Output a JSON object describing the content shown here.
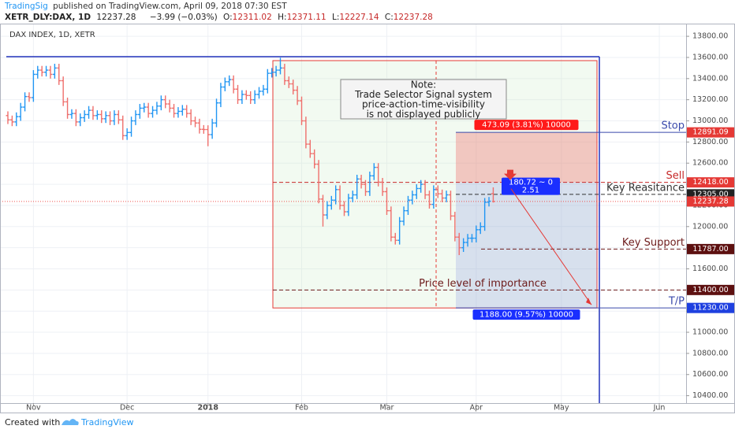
{
  "header": {
    "publisher": "TradingSig",
    "published": "published on TradingView.com, April 09, 2018 07:30 EST",
    "symbol": "XETR_DLY:DAX, 1D",
    "change": "−3.99 (−0.03%)",
    "o": "O:",
    "h": "H:",
    "l": "L:",
    "c": "C:"
  },
  "chart_data": {
    "type": "ohlc",
    "title": "DAX INDEX, 1D, XETR",
    "up_color": "#2196f3",
    "down_color": "#ef6f6c",
    "open": [
      13050,
      13010,
      12990,
      13040,
      13130,
      13230,
      13220,
      13440,
      13480,
      13460,
      13480,
      13440,
      13500,
      13380,
      13180,
      13060,
      13070,
      12990,
      13030,
      13060,
      13100,
      13050,
      13060,
      13020,
      13050,
      13000,
      13060,
      13010,
      12860,
      12890,
      13000,
      13060,
      13120,
      13130,
      13070,
      13100,
      13140,
      13200,
      13160,
      13120,
      13070,
      13090,
      13110,
      13070,
      13000,
      12980,
      12920,
      12918,
      12870,
      12980,
      13170,
      13320,
      13370,
      13390,
      13300,
      13200,
      13250,
      13240,
      13200,
      13250,
      13280,
      13300,
      13450,
      13460,
      13480,
      13500,
      13380,
      13350,
      13290,
      13190,
      13000,
      12780,
      12690,
      12590,
      12260,
      12110,
      12200,
      12250,
      12350,
      12200,
      12140,
      12270,
      12300,
      12450,
      12400,
      12330,
      12480,
      12560,
      12420,
      12330,
      12150,
      11900,
      11870,
      12050,
      12150,
      12250,
      12300,
      12360,
      12400,
      12300,
      12210,
      12350,
      12310,
      12270,
      12300,
      12100,
      11900,
      11800,
      11850,
      11890,
      11890,
      11970,
      12000,
      12230,
      12311.02
    ],
    "high": [
      13090,
      13050,
      13080,
      13170,
      13270,
      13270,
      13480,
      13520,
      13520,
      13520,
      13520,
      13540,
      13540,
      13420,
      13220,
      13110,
      13110,
      13070,
      13100,
      13140,
      13140,
      13100,
      13100,
      13090,
      13090,
      13100,
      13100,
      13050,
      12930,
      13040,
      13100,
      13160,
      13170,
      13170,
      13140,
      13180,
      13240,
      13240,
      13200,
      13160,
      13130,
      13150,
      13150,
      13110,
      13040,
      13020,
      12960,
      12958,
      13020,
      13210,
      13360,
      13410,
      13430,
      13430,
      13340,
      13290,
      13290,
      13280,
      13290,
      13320,
      13340,
      13490,
      13500,
      13520,
      13597,
      13540,
      13420,
      13390,
      13330,
      13230,
      13040,
      12820,
      12730,
      12630,
      12300,
      12240,
      12290,
      12390,
      12390,
      12240,
      12310,
      12340,
      12490,
      12490,
      12440,
      12520,
      12600,
      12600,
      12460,
      12370,
      12190,
      11940,
      12090,
      12190,
      12290,
      12340,
      12400,
      12440,
      12440,
      12340,
      12390,
      12390,
      12350,
      12340,
      12340,
      12140,
      11940,
      11890,
      11930,
      11930,
      12010,
      12040,
      12270,
      12280,
      12371.11
    ],
    "low": [
      12970,
      12950,
      12950,
      13000,
      13090,
      13180,
      13180,
      13400,
      13420,
      13420,
      13400,
      13400,
      13340,
      13140,
      13020,
      13020,
      12950,
      12950,
      12990,
      13020,
      13010,
      13010,
      12980,
      12980,
      12960,
      12960,
      12970,
      12820,
      12820,
      12850,
      12960,
      13020,
      13080,
      13030,
      13030,
      13060,
      13100,
      13120,
      13080,
      13030,
      13030,
      13050,
      13030,
      12960,
      12940,
      12880,
      12878,
      12760,
      12830,
      12940,
      13130,
      13280,
      13330,
      13260,
      13160,
      13160,
      13200,
      13160,
      13160,
      13210,
      13240,
      13260,
      13410,
      13420,
      13440,
      13340,
      13310,
      13250,
      13150,
      12960,
      12740,
      12650,
      12550,
      12220,
      12000,
      12070,
      12160,
      12210,
      12160,
      12100,
      12100,
      12230,
      12260,
      12360,
      12290,
      12290,
      12440,
      12380,
      12290,
      12110,
      11860,
      11830,
      11830,
      12010,
      12110,
      12210,
      12260,
      12320,
      12260,
      12170,
      12170,
      12270,
      12230,
      12230,
      12060,
      11860,
      11730,
      11760,
      11810,
      11850,
      11850,
      11930,
      11960,
      12190,
      12227.14
    ],
    "close": [
      13010,
      12990,
      13040,
      13130,
      13230,
      13220,
      13440,
      13480,
      13460,
      13480,
      13440,
      13500,
      13380,
      13180,
      13060,
      13070,
      12990,
      13030,
      13060,
      13100,
      13050,
      13060,
      13020,
      13050,
      13000,
      13060,
      13010,
      12860,
      12890,
      13000,
      13060,
      13120,
      13130,
      13070,
      13100,
      13140,
      13200,
      13160,
      13120,
      13070,
      13090,
      13110,
      13070,
      13000,
      12980,
      12920,
      12918,
      12870,
      12980,
      13170,
      13320,
      13370,
      13390,
      13300,
      13200,
      13250,
      13240,
      13200,
      13250,
      13280,
      13300,
      13450,
      13460,
      13480,
      13500,
      13380,
      13350,
      13290,
      13190,
      13000,
      12780,
      12690,
      12590,
      12260,
      12110,
      12200,
      12250,
      12350,
      12200,
      12140,
      12270,
      12300,
      12450,
      12400,
      12330,
      12480,
      12560,
      12420,
      12330,
      12150,
      11900,
      11870,
      12050,
      12150,
      12250,
      12300,
      12360,
      12400,
      12300,
      12210,
      12350,
      12310,
      12270,
      12300,
      12100,
      11900,
      11800,
      11850,
      11890,
      11890,
      11970,
      12000,
      12230,
      12240,
      12237.28
    ],
    "xlim": [
      -1.85,
      159.3
    ],
    "xticks": [
      {
        "value": 6,
        "label": "Nov"
      },
      {
        "value": 28,
        "label": "Dec"
      },
      {
        "value": 47,
        "label": "2018"
      },
      {
        "value": 69,
        "label": "Feb"
      },
      {
        "value": 89,
        "label": "Mar"
      },
      {
        "value": 110,
        "label": "Apr"
      },
      {
        "value": 130,
        "label": "May"
      },
      {
        "value": 153,
        "label": "Jun"
      }
    ],
    "ylim": [
      10330,
      13920
    ],
    "yticks": [
      {
        "value": 13800,
        "label": "13800.00"
      },
      {
        "value": 13600,
        "label": "13600.00"
      },
      {
        "value": 13400,
        "label": "13400.00"
      },
      {
        "value": 13200,
        "label": "13200.00"
      },
      {
        "value": 13000,
        "label": "13000.00"
      },
      {
        "value": 12800,
        "label": "12800.00"
      },
      {
        "value": 12600,
        "label": "12600.00"
      },
      {
        "value": 12400,
        "label": "12400.00"
      },
      {
        "value": 12200,
        "label": "12200.00"
      },
      {
        "value": 12000,
        "label": "12000.00"
      },
      {
        "value": 11800,
        "label": "11800.00"
      },
      {
        "value": 11600,
        "label": "11600.00"
      },
      {
        "value": 11400,
        "label": "11400.00"
      },
      {
        "value": 11200,
        "label": "11200.00"
      },
      {
        "value": 11000,
        "label": "11000.00"
      },
      {
        "value": 10800,
        "label": "10800.00"
      },
      {
        "value": 10600,
        "label": "10600.00"
      },
      {
        "value": 10400,
        "label": "10400.00"
      }
    ],
    "grid": true,
    "levels": [
      {
        "name": "Stop",
        "value": 12891.09,
        "color": "#3949ab",
        "box_color": "#e53935",
        "style": "solid"
      },
      {
        "name": "Sell",
        "value": 12418,
        "label": "12418.00",
        "color": "#c62828",
        "box_color": "#e53935",
        "style": "dashed"
      },
      {
        "name": "Key Reasitance",
        "value": 12305,
        "label": "12305.00",
        "color": "#333333",
        "box_color": "#222222",
        "style": "dashed"
      },
      {
        "name": "Key Support",
        "value": 11787,
        "label": "11787.00",
        "color": "#6d1b1b",
        "box_color": "#5d1010",
        "style": "dashed"
      },
      {
        "name": "Price level of importance",
        "value": 11400,
        "label": "11400.00",
        "color": "#6d1b1b",
        "box_color": "#5d1010",
        "style": "dashed"
      },
      {
        "name": "T/P",
        "value": 11230,
        "label": "11230.00",
        "color": "#3949ab",
        "box_color": "#1e40e0",
        "style": "solid"
      }
    ],
    "position": {
      "risk_label": "473.09 (3.81%) 10000",
      "reward_label": "1188.00 (9.57%) 10000",
      "pl_label": "180.72 ~ 0",
      "ratio": "2.51"
    },
    "note": [
      "Note:",
      "Trade Selector Signal system",
      "price-action-time-visibility",
      "is not displayed publicly"
    ]
  },
  "footer": {
    "created": "Created with",
    "brand": "TradingView"
  }
}
